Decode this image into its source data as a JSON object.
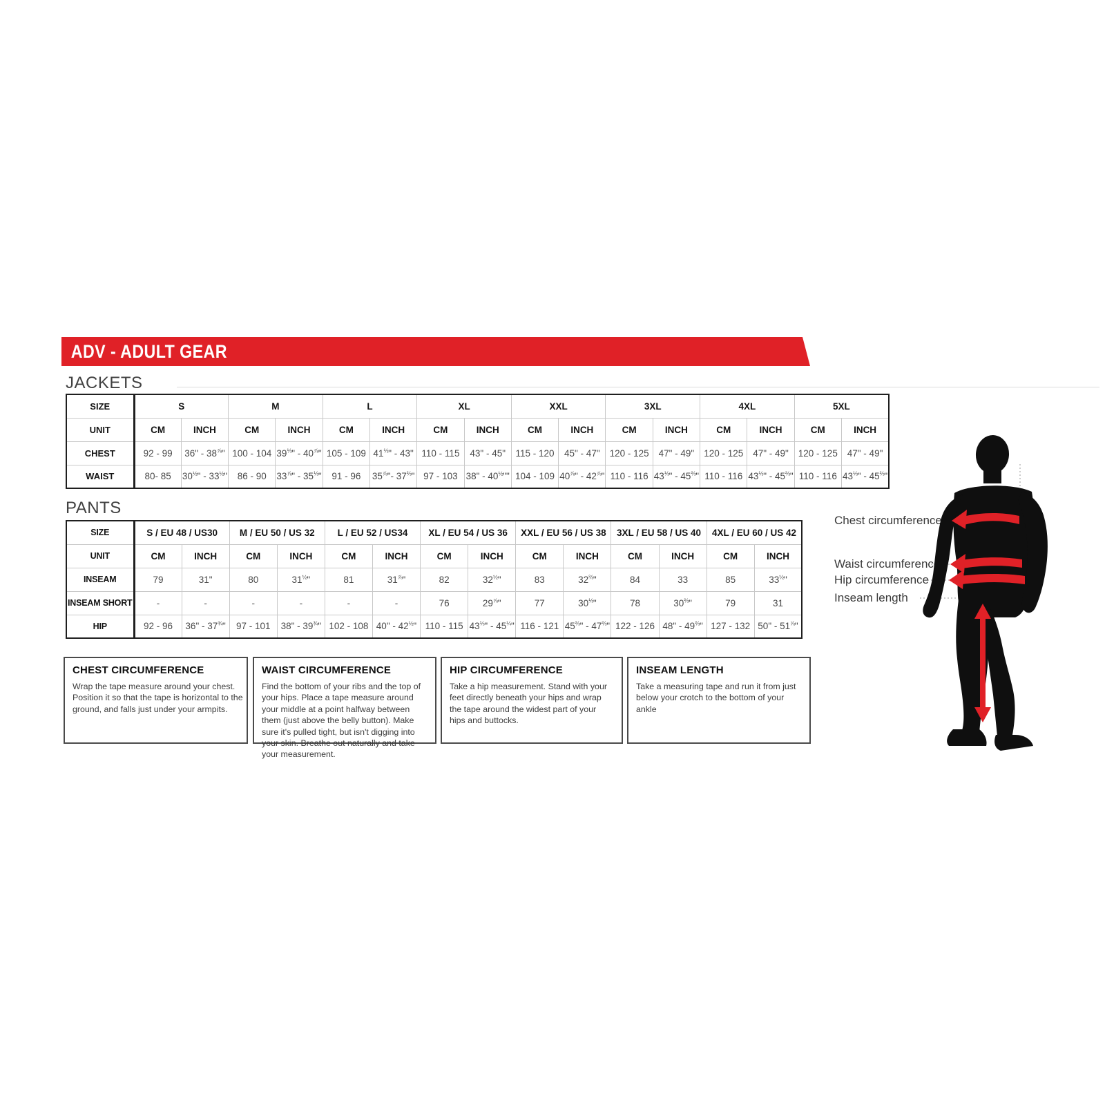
{
  "banner": {
    "title": "ADV - ADULT GEAR",
    "color": "#e02127"
  },
  "sections": {
    "jackets_heading": "JACKETS",
    "pants_heading": "PANTS"
  },
  "jackets_table": {
    "corner_label": "SIZE",
    "unit_row_label": "UNIT",
    "units": [
      "CM",
      "INCH"
    ],
    "sizes": [
      "S",
      "M",
      "L",
      "XL",
      "XXL",
      "3XL",
      "4XL",
      "5XL"
    ],
    "rows": [
      {
        "label": "CHEST",
        "cells": [
          "92 - 99",
          "36\" - 38⅞\"",
          "100 - 104",
          "39⅓\" - 40⅞\"",
          "105 - 109",
          "41⅓\" - 43\"",
          "110 - 115",
          "43\" - 45\"",
          "115 - 120",
          "45\" - 47\"",
          "120 - 125",
          "47\" - 49\"",
          "120 - 125",
          "47\" - 49\"",
          "120 - 125",
          "47\" - 49\""
        ]
      },
      {
        "label": "WAIST",
        "cells": [
          "80- 85",
          "30½\" - 33½\"",
          "86 - 90",
          "33⅞\" - 35⅓\"",
          "91 - 96",
          "35⅞\"- 37⅔\"",
          "97 - 103",
          "38\" - 40½\"\"",
          "104 - 109",
          "40⅞\" - 42⅞\"",
          "110 - 116",
          "43⅓\" - 45⅔\"",
          "110 - 116",
          "43⅓\" - 45⅔\"",
          "110 - 116",
          "43⅓\" - 45⅔\""
        ]
      }
    ]
  },
  "pants_table": {
    "corner_label": "SIZE",
    "unit_row_label": "UNIT",
    "units": [
      "CM",
      "INCH"
    ],
    "sizes": [
      "S / EU 48 / US30",
      "M / EU 50 / US 32",
      "L / EU 52 / US34",
      "XL / EU 54 / US 36",
      "XXL / EU 56 / US 38",
      "3XL / EU 58 / US 40",
      "4XL / EU 60 / US 42"
    ],
    "rows": [
      {
        "label": "INSEAM",
        "cells": [
          "79",
          "31\"",
          "80",
          "31½\"",
          "81",
          "31⅞\"",
          "82",
          "32½\"",
          "83",
          "32⅔\"",
          "84",
          "33",
          "85",
          "33½\""
        ]
      },
      {
        "label": "INSEAM SHORT",
        "cells": [
          "-",
          "-",
          "-",
          "-",
          "-",
          "-",
          "76",
          "29⅞\"",
          "77",
          "30⅓\"",
          "78",
          "30⅔\"",
          "79",
          "31"
        ]
      },
      {
        "label": "HIP",
        "cells": [
          "92 - 96",
          "36\" - 37¾\"",
          "97 - 101",
          "38\" - 39¾\"",
          "102 - 108",
          "40\" - 42½\"",
          "110 - 115",
          "43⅓\" - 45¼\"",
          "116 - 121",
          "45⅔\" - 47⅔\"",
          "122 - 126",
          "48\" - 49⅔\"",
          "127 - 132",
          "50\" - 51⅞\""
        ]
      }
    ]
  },
  "info_boxes": [
    {
      "title": "CHEST CIRCUMFERENCE",
      "body": "Wrap the tape measure around your chest. Position it so that the tape is horizontal to the ground, and falls just under your armpits."
    },
    {
      "title": "WAIST CIRCUMFERENCE",
      "body": "Find the bottom of your ribs and the top of your hips. Place a tape measure around your middle at a point halfway between them (just above the belly button). Make sure it's pulled tight, but isn't digging into your skin. Breathe out naturally and take your measurement."
    },
    {
      "title": "HIP CIRCUMFERENCE",
      "body": "Take a hip measurement. Stand with your feet directly beneath your hips and wrap the tape around the widest part of your hips and buttocks."
    },
    {
      "title": "INSEAM LENGTH",
      "body": "Take a measuring tape and run it from just below your crotch to the bottom of your ankle"
    }
  ],
  "figure": {
    "labels": [
      "Chest circumference",
      "Waist circumference",
      "Hip circumference",
      "Inseam length"
    ],
    "arrow_color": "#e02127",
    "silhouette_color": "#0f0f0f"
  }
}
